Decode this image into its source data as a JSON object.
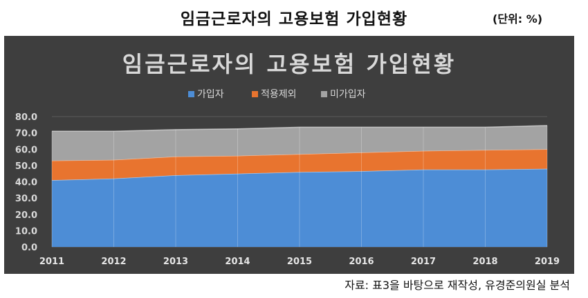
{
  "page": {
    "title": "임금근로자의 고용보험 가입현황",
    "unit": "(단위: %)",
    "source": "자료: 표3을 바탕으로 재작성, 유경준의원실 분석"
  },
  "colors": {
    "background": "#3e3e3e",
    "series": [
      "#4d8dd6",
      "#e8742f",
      "#a3a3a3"
    ]
  },
  "chart_data": {
    "type": "area",
    "stacked": true,
    "title": "임금근로자의 고용보험 가입현황",
    "legend_position": "top",
    "xlabel": "",
    "ylabel": "",
    "ylim": [
      0,
      80
    ],
    "yticks": [
      "0.0",
      "10.0",
      "20.0",
      "30.0",
      "40.0",
      "50.0",
      "60.0",
      "70.0",
      "80.0"
    ],
    "categories": [
      "2011",
      "2012",
      "2013",
      "2014",
      "2015",
      "2016",
      "2017",
      "2018",
      "2019"
    ],
    "series": [
      {
        "name": "가입자",
        "values": [
          41.0,
          42.0,
          44.0,
          45.0,
          46.0,
          46.5,
          47.5,
          47.5,
          48.0
        ]
      },
      {
        "name": "적용제외",
        "values": [
          12.0,
          11.5,
          11.5,
          11.0,
          11.0,
          11.5,
          11.5,
          12.0,
          12.0
        ]
      },
      {
        "name": "미가입자",
        "values": [
          18.0,
          17.5,
          16.5,
          16.5,
          16.5,
          15.5,
          14.5,
          14.0,
          14.5
        ]
      }
    ],
    "grid": true
  }
}
